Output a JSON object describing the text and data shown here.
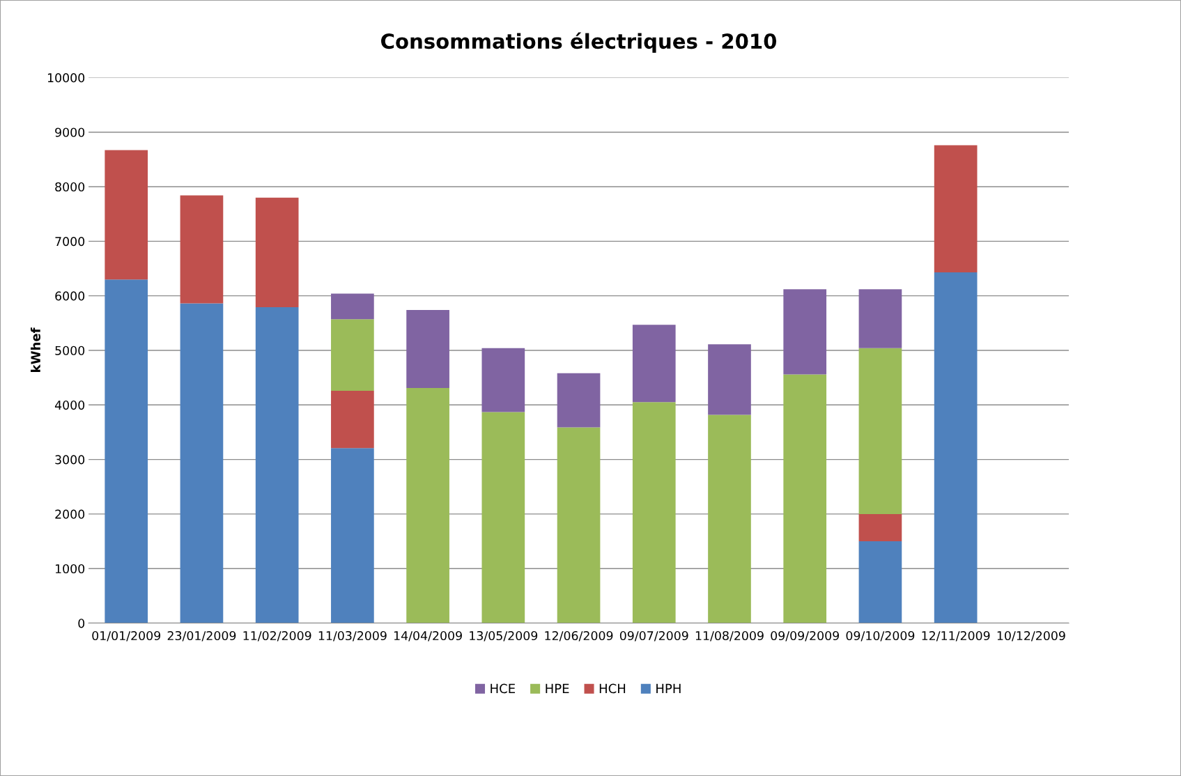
{
  "chart_data": {
    "type": "bar",
    "title": "Consommations électriques - 2010",
    "ylabel": "kWhef",
    "categories": [
      "01/01/2009",
      "23/01/2009",
      "11/02/2009",
      "11/03/2009",
      "14/04/2009",
      "13/05/2009",
      "12/06/2009",
      "09/07/2009",
      "11/08/2009",
      "09/09/2009",
      "09/10/2009",
      "12/11/2009",
      "10/12/2009"
    ],
    "stacked": true,
    "series": [
      {
        "name": "HPH",
        "color": "#4f81bd",
        "values": [
          6300,
          5860,
          5790,
          3210,
          null,
          null,
          null,
          null,
          null,
          null,
          1500,
          6430,
          null
        ]
      },
      {
        "name": "HCH",
        "color": "#c0504d",
        "values": [
          2370,
          1980,
          2010,
          1050,
          null,
          null,
          null,
          null,
          null,
          null,
          500,
          2330,
          null
        ]
      },
      {
        "name": "HPE",
        "color": "#9bbb59",
        "values": [
          null,
          null,
          null,
          1310,
          4310,
          3870,
          3590,
          4050,
          3820,
          4560,
          3040,
          null,
          null
        ]
      },
      {
        "name": "HCE",
        "color": "#8064a2",
        "values": [
          null,
          null,
          null,
          470,
          1430,
          1170,
          990,
          1420,
          1290,
          1560,
          1080,
          null,
          null
        ]
      }
    ],
    "ylim": [
      0,
      10000
    ],
    "yticks": [
      0,
      1000,
      2000,
      3000,
      4000,
      5000,
      6000,
      7000,
      8000,
      9000,
      10000
    ],
    "grid": "y",
    "legend": "bottom"
  }
}
